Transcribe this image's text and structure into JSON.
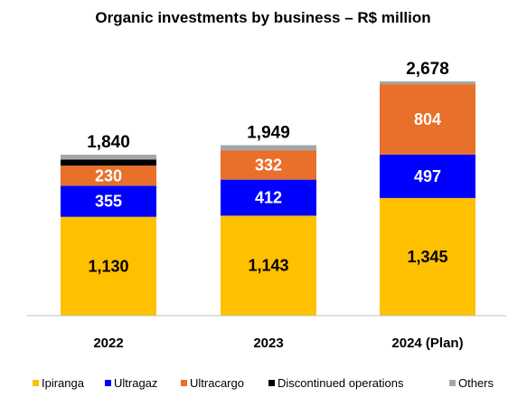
{
  "chart_data": {
    "type": "bar",
    "stacked": true,
    "title": "Organic investments by business – R$ million",
    "xlabel": "",
    "ylabel": "",
    "categories": [
      "2022",
      "2023",
      "2024 (Plan)"
    ],
    "series": [
      {
        "name": "Ipiranga",
        "color": "#FFC000",
        "label_color": "#000000",
        "values": [
          1130,
          1143,
          1345
        ],
        "labels": [
          "1,130",
          "1,143",
          "1,345"
        ]
      },
      {
        "name": "Ultragaz",
        "color": "#0000FF",
        "label_color": "#FFFFFF",
        "values": [
          355,
          412,
          497
        ],
        "labels": [
          "355",
          "412",
          "497"
        ]
      },
      {
        "name": "Ultracargo",
        "color": "#E8702A",
        "label_color": "#FFFFFF",
        "values": [
          230,
          332,
          804
        ],
        "labels": [
          "230",
          "332",
          "804"
        ]
      },
      {
        "name": "Discontinued operations",
        "color": "#000000",
        "label_color": "#FFFFFF",
        "values": [
          70,
          0,
          0
        ],
        "labels": [
          "",
          "",
          ""
        ]
      },
      {
        "name": "Others",
        "color": "#A6A6A6",
        "label_color": "#000000",
        "values": [
          55,
          62,
          32
        ],
        "labels": [
          "",
          "",
          ""
        ]
      }
    ],
    "totals": [
      "1,840",
      "1,949",
      "2,678"
    ],
    "ylim": [
      0,
      2678
    ],
    "grid": false,
    "legend_position": "bottom"
  }
}
